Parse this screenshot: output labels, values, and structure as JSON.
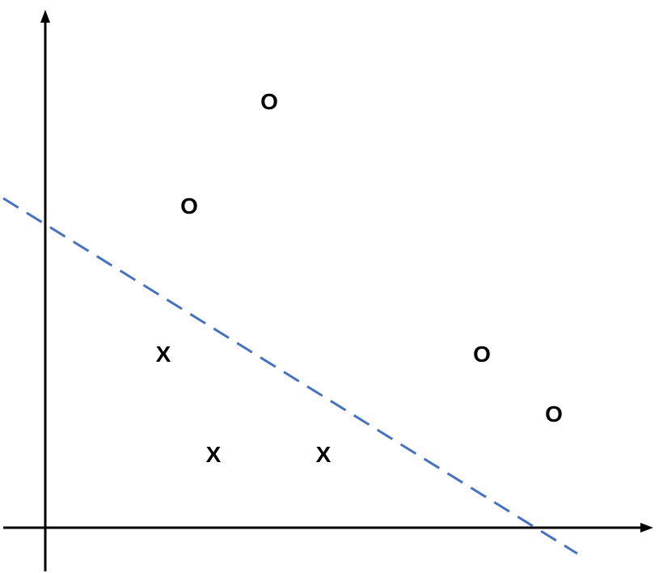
{
  "colors": {
    "axis": "#000000",
    "boundary": "#4472c4",
    "background": "#ffffff"
  },
  "diagram": {
    "marks": [
      {
        "class": "o",
        "symbol": "O"
      },
      {
        "class": "o",
        "symbol": "O"
      },
      {
        "class": "x",
        "symbol": "X"
      },
      {
        "class": "o",
        "symbol": "O"
      },
      {
        "class": "o",
        "symbol": "O"
      },
      {
        "class": "x",
        "symbol": "X"
      },
      {
        "class": "x",
        "symbol": "X"
      }
    ]
  }
}
